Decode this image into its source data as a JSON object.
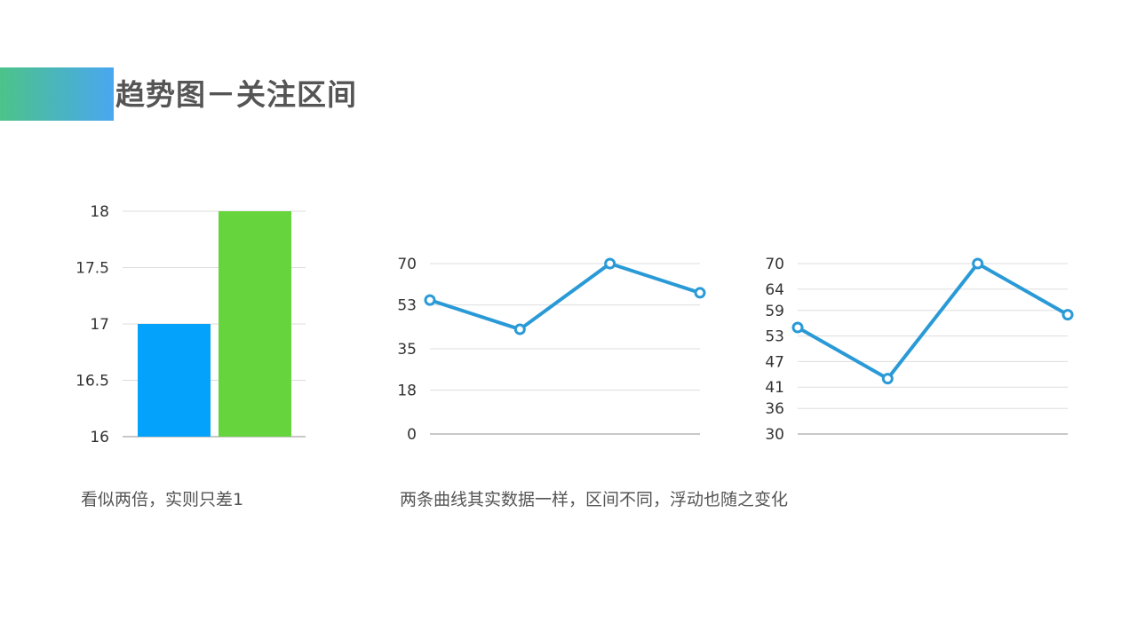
{
  "slide": {
    "title": "趋势图－关注区间",
    "caption_left": "看似两倍，实则只差1",
    "caption_right": "两条曲线其实数据一样，区间不同，浮动也随之变化"
  },
  "colors": {
    "title_gradient_start": "#4cc389",
    "title_gradient_end": "#49a7f0",
    "bar_blue": "#04a2fb",
    "bar_green": "#66d43c",
    "line": "#2a9ad7",
    "grid": "#dddddd",
    "axis": "#b5b5b5"
  },
  "chart_data": [
    {
      "type": "bar",
      "categories": [
        "",
        ""
      ],
      "values": [
        17,
        18
      ],
      "bar_colors": [
        "#04a2fb",
        "#66d43c"
      ],
      "ylim": [
        16,
        18
      ],
      "yticks": [
        16,
        16.5,
        17,
        17.5,
        18
      ],
      "ytick_labels": [
        "16",
        "16.5",
        "17",
        "17.5",
        "18"
      ],
      "grid": true,
      "title": "",
      "xlabel": "",
      "ylabel": ""
    },
    {
      "type": "line",
      "x": [
        1,
        2,
        3,
        4
      ],
      "values": [
        55,
        43,
        70,
        58
      ],
      "ylim": [
        0,
        70
      ],
      "yticks": [
        0,
        18,
        35,
        53,
        70
      ],
      "ytick_labels": [
        "0",
        "18",
        "35",
        "53",
        "70"
      ],
      "grid": true,
      "title": "",
      "xlabel": "",
      "ylabel": ""
    },
    {
      "type": "line",
      "x": [
        1,
        2,
        3,
        4
      ],
      "values": [
        55,
        43,
        70,
        58
      ],
      "ylim": [
        30,
        70
      ],
      "yticks": [
        30,
        36,
        41,
        47,
        53,
        59,
        64,
        70
      ],
      "ytick_labels": [
        "30",
        "36",
        "41",
        "47",
        "53",
        "59",
        "64",
        "70"
      ],
      "grid": true,
      "title": "",
      "xlabel": "",
      "ylabel": ""
    }
  ]
}
